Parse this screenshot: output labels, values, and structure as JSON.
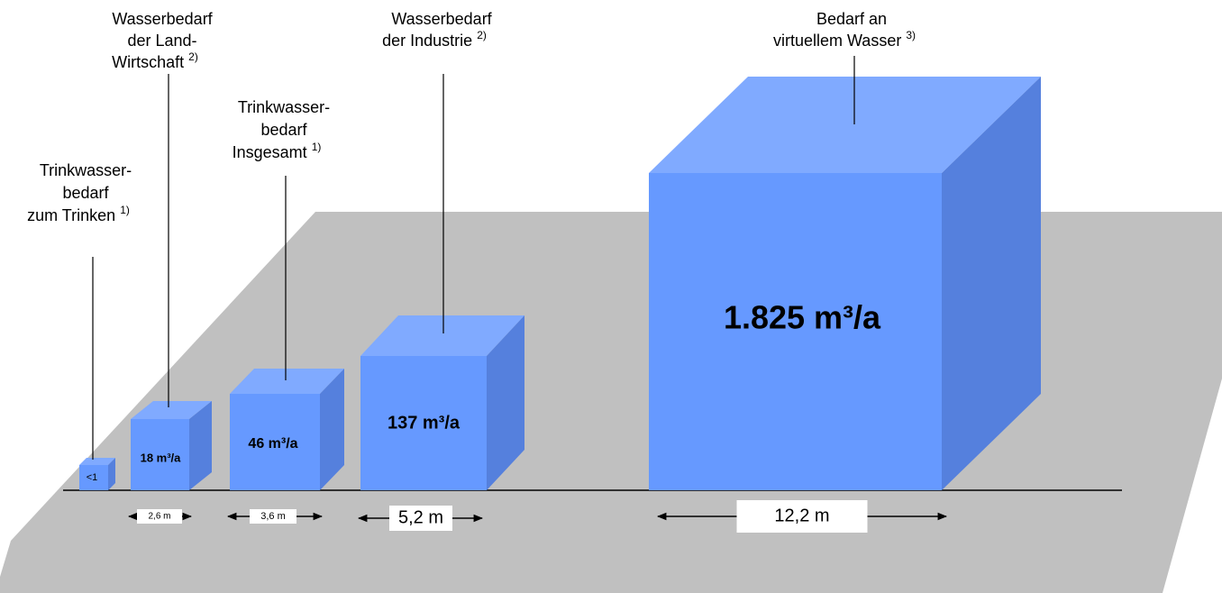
{
  "items": [
    {
      "label": [
        "Trinkwasser-",
        "bedarf",
        "zum Trinken"
      ],
      "note": "1)",
      "volume": "<1"
    },
    {
      "label": [
        "Wasserbedarf",
        "der Land-",
        "Wirtschaft"
      ],
      "note": "2)",
      "volume": "18 m³/a",
      "width": "2,6 m"
    },
    {
      "label": [
        "Trinkwasser-",
        "bedarf",
        "Insgesamt"
      ],
      "note": "1)",
      "volume": "46 m³/a",
      "width": "3,6 m"
    },
    {
      "label": [
        "Wasserbedarf",
        "der Industrie"
      ],
      "note": "2)",
      "volume": "137 m³/a",
      "width": "5,2 m"
    },
    {
      "label": [
        "Bedarf an",
        "virtuellem Wasser"
      ],
      "note": "3)",
      "volume": "1.825 m³/a",
      "width": "12,2 m"
    }
  ]
}
